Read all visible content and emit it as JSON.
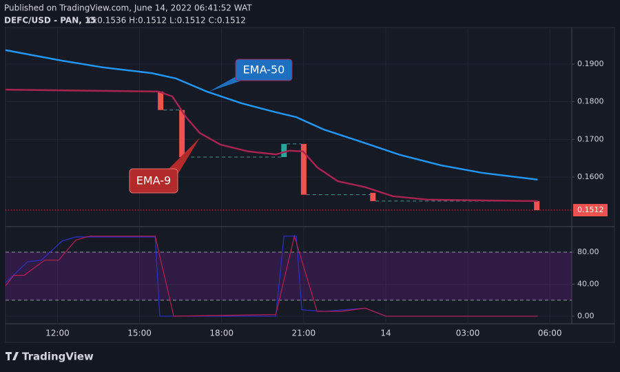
{
  "header": {
    "published": "Published on TradingView.com, June 14, 2022 06:41:52 WAT",
    "symbol": "DEFC/USD - PAN, 15",
    "ohlc": "O:0.1536 H:0.1512 L:0.1512 C:0.1512"
  },
  "footer": {
    "brand": "TradingView"
  },
  "chart_data": [
    {
      "type": "line",
      "xlim": [
        10.1,
        30.8
      ],
      "ylim": [
        0.147,
        0.1997
      ],
      "yticks": [
        {
          "value": 0.19,
          "label": "0.1900"
        },
        {
          "value": 0.18,
          "label": "0.1800"
        },
        {
          "value": 0.17,
          "label": "0.1700"
        },
        {
          "value": 0.16,
          "label": "0.1600"
        }
      ],
      "grid": true,
      "series": [
        {
          "name": "EMA-50",
          "color": "#2196f3",
          "x": [
            10.1,
            12.17,
            13.68,
            15.44,
            16.32,
            17.46,
            18.72,
            19.98,
            20.73,
            21.74,
            23.25,
            24.51,
            26.02,
            27.53,
            29.55
          ],
          "values": [
            0.1937,
            0.1909,
            0.1891,
            0.1876,
            0.1862,
            0.1827,
            0.1796,
            0.1772,
            0.1759,
            0.1726,
            0.169,
            0.1659,
            0.1631,
            0.1611,
            0.1593
          ]
        },
        {
          "name": "EMA-9",
          "color": "#a8234f",
          "x": [
            10.1,
            15.69,
            16.2,
            16.7,
            17.2,
            17.96,
            18.97,
            19.98,
            20.48,
            20.98,
            21.49,
            22.24,
            23.25,
            24.26,
            25.52,
            27.53,
            29.55
          ],
          "values": [
            0.1832,
            0.1827,
            0.1814,
            0.1759,
            0.1717,
            0.1686,
            0.1668,
            0.166,
            0.167,
            0.1668,
            0.1626,
            0.1589,
            0.1573,
            0.1549,
            0.154,
            0.1538,
            0.1536
          ]
        }
      ],
      "candles": {
        "up_color": "#26a69a",
        "down_color": "#ef5350",
        "x": [
          15.77,
          16.55,
          20.28,
          21.0,
          23.53,
          29.52
        ],
        "open": [
          0.1827,
          0.1778,
          0.1653,
          0.1688,
          0.1558,
          0.1536
        ],
        "close": [
          0.1778,
          0.1653,
          0.1688,
          0.1553,
          0.1536,
          0.1512
        ]
      },
      "last_price": {
        "value": 0.1512,
        "label": "0.1512",
        "color": "#ef5350"
      }
    },
    {
      "type": "line",
      "xlim": [
        10.1,
        30.8
      ],
      "ylim": [
        -9.5,
        111
      ],
      "xticks": [
        {
          "value": 12,
          "label": "12:00"
        },
        {
          "value": 15,
          "label": "15:00"
        },
        {
          "value": 18,
          "label": "18:00"
        },
        {
          "value": 21,
          "label": "21:00"
        },
        {
          "value": 24,
          "label": "14"
        },
        {
          "value": 27,
          "label": "03:00"
        },
        {
          "value": 30,
          "label": "06:00"
        }
      ],
      "yticks": [
        {
          "value": 80,
          "label": "80.00"
        },
        {
          "value": 40,
          "label": "40.00"
        },
        {
          "value": 0,
          "label": "0.00"
        }
      ],
      "band": [
        20,
        80
      ],
      "band_color": "#7b1fa2",
      "series": [
        {
          "color": "#2a2fc4",
          "x": [
            10.1,
            10.91,
            11.41,
            12.17,
            12.67,
            15.57,
            15.74,
            19.98,
            20.28,
            20.73,
            20.93,
            21.74,
            23.25,
            24.01,
            29.55
          ],
          "values": [
            42,
            68,
            70,
            94,
            99,
            99,
            0,
            0,
            100,
            100,
            8,
            6,
            10,
            0,
            0
          ]
        },
        {
          "color": "#b01e4e",
          "x": [
            10.1,
            10.4,
            10.78,
            11.53,
            12.04,
            12.67,
            13.17,
            15.57,
            16.25,
            19.98,
            20.66,
            21.49,
            22.37,
            23.25,
            24.01,
            29.55
          ],
          "values": [
            38,
            51,
            51,
            70,
            70,
            95,
            100,
            100,
            0,
            2,
            100,
            6,
            6,
            10,
            0,
            0
          ]
        }
      ]
    }
  ]
}
